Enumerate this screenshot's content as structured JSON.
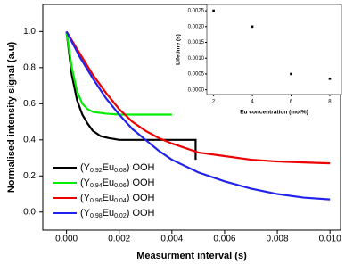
{
  "chart_data": [
    {
      "type": "line",
      "x_label": "Measurment interval (s)",
      "y_label": "Normalised intensity signal (a.u)",
      "xlim": [
        -0.0009,
        0.0104
      ],
      "ylim": [
        -0.1,
        1.15
      ],
      "xticks": [
        {
          "value": 0,
          "label": "0.000"
        },
        {
          "value": 0.002,
          "label": "0.002"
        },
        {
          "value": 0.004,
          "label": "0.004"
        },
        {
          "value": 0.006,
          "label": "0.006"
        },
        {
          "value": 0.008,
          "label": "0.008"
        },
        {
          "value": 0.01,
          "label": "0.010"
        }
      ],
      "yticks": [
        {
          "value": 0,
          "label": "0.0"
        },
        {
          "value": 0.2,
          "label": "0.2"
        },
        {
          "value": 0.4,
          "label": "0.4"
        },
        {
          "value": 0.6,
          "label": "0.6"
        },
        {
          "value": 0.8,
          "label": "0.8"
        },
        {
          "value": 1,
          "label": "1.0"
        }
      ],
      "legend": "lower left",
      "series": [
        {
          "name": "(Y0.92Eu0.08) OOH",
          "color": "#000000",
          "x": [
            0,
            0.0002,
            0.0004,
            0.0006,
            0.0008,
            0.001,
            0.0013,
            0.0016,
            0.002,
            0.0025,
            0.003,
            0.0035,
            0.004,
            0.0045,
            0.0049,
            0.0049
          ],
          "values": [
            1.0,
            0.76,
            0.62,
            0.54,
            0.49,
            0.45,
            0.42,
            0.41,
            0.4,
            0.4,
            0.4,
            0.4,
            0.4,
            0.4,
            0.4,
            0.29
          ]
        },
        {
          "name": "(Y0.94Eu0.06) OOH",
          "color": "#00ee00",
          "x": [
            0,
            0.0002,
            0.0004,
            0.0006,
            0.0008,
            0.001,
            0.0015,
            0.002,
            0.003,
            0.004
          ],
          "values": [
            1.0,
            0.8,
            0.67,
            0.6,
            0.57,
            0.555,
            0.545,
            0.54,
            0.54,
            0.54
          ]
        },
        {
          "name": "(Y0.96Eu0.04) OOH",
          "color": "#ee0000",
          "x": [
            0,
            0.0005,
            0.001,
            0.0015,
            0.002,
            0.0025,
            0.003,
            0.0035,
            0.004,
            0.005,
            0.006,
            0.007,
            0.008,
            0.009,
            0.01
          ],
          "values": [
            1.0,
            0.88,
            0.76,
            0.66,
            0.57,
            0.5,
            0.45,
            0.41,
            0.38,
            0.33,
            0.31,
            0.29,
            0.28,
            0.275,
            0.27
          ]
        },
        {
          "name": "(Y0.98Eu0.02) OOH",
          "color": "#2222ee",
          "x": [
            0,
            0.0005,
            0.001,
            0.0015,
            0.002,
            0.0025,
            0.003,
            0.0035,
            0.004,
            0.005,
            0.006,
            0.007,
            0.008,
            0.009,
            0.01
          ],
          "values": [
            1.0,
            0.86,
            0.74,
            0.63,
            0.54,
            0.46,
            0.4,
            0.34,
            0.29,
            0.22,
            0.17,
            0.13,
            0.1,
            0.08,
            0.07
          ]
        }
      ]
    },
    {
      "type": "scatter",
      "x_label": "Eu concentration (mol%)",
      "y_label": "Lifetime (s)",
      "xlim": [
        1.65,
        8.6
      ],
      "ylim": [
        -0.00015,
        0.0027
      ],
      "xticks": [
        2,
        4,
        6,
        8
      ],
      "yticks": [
        {
          "value": 0,
          "label": "0.0000"
        },
        {
          "value": 0.0005,
          "label": "0.0005"
        },
        {
          "value": 0.001,
          "label": "0.0010"
        },
        {
          "value": 0.0015,
          "label": "0.0015"
        },
        {
          "value": 0.002,
          "label": "0.0020"
        },
        {
          "value": 0.0025,
          "label": "0.0025"
        }
      ],
      "color": "#000000",
      "x": [
        2,
        4,
        6,
        8
      ],
      "values": [
        0.0025,
        0.002,
        0.0005,
        0.00035
      ]
    }
  ]
}
